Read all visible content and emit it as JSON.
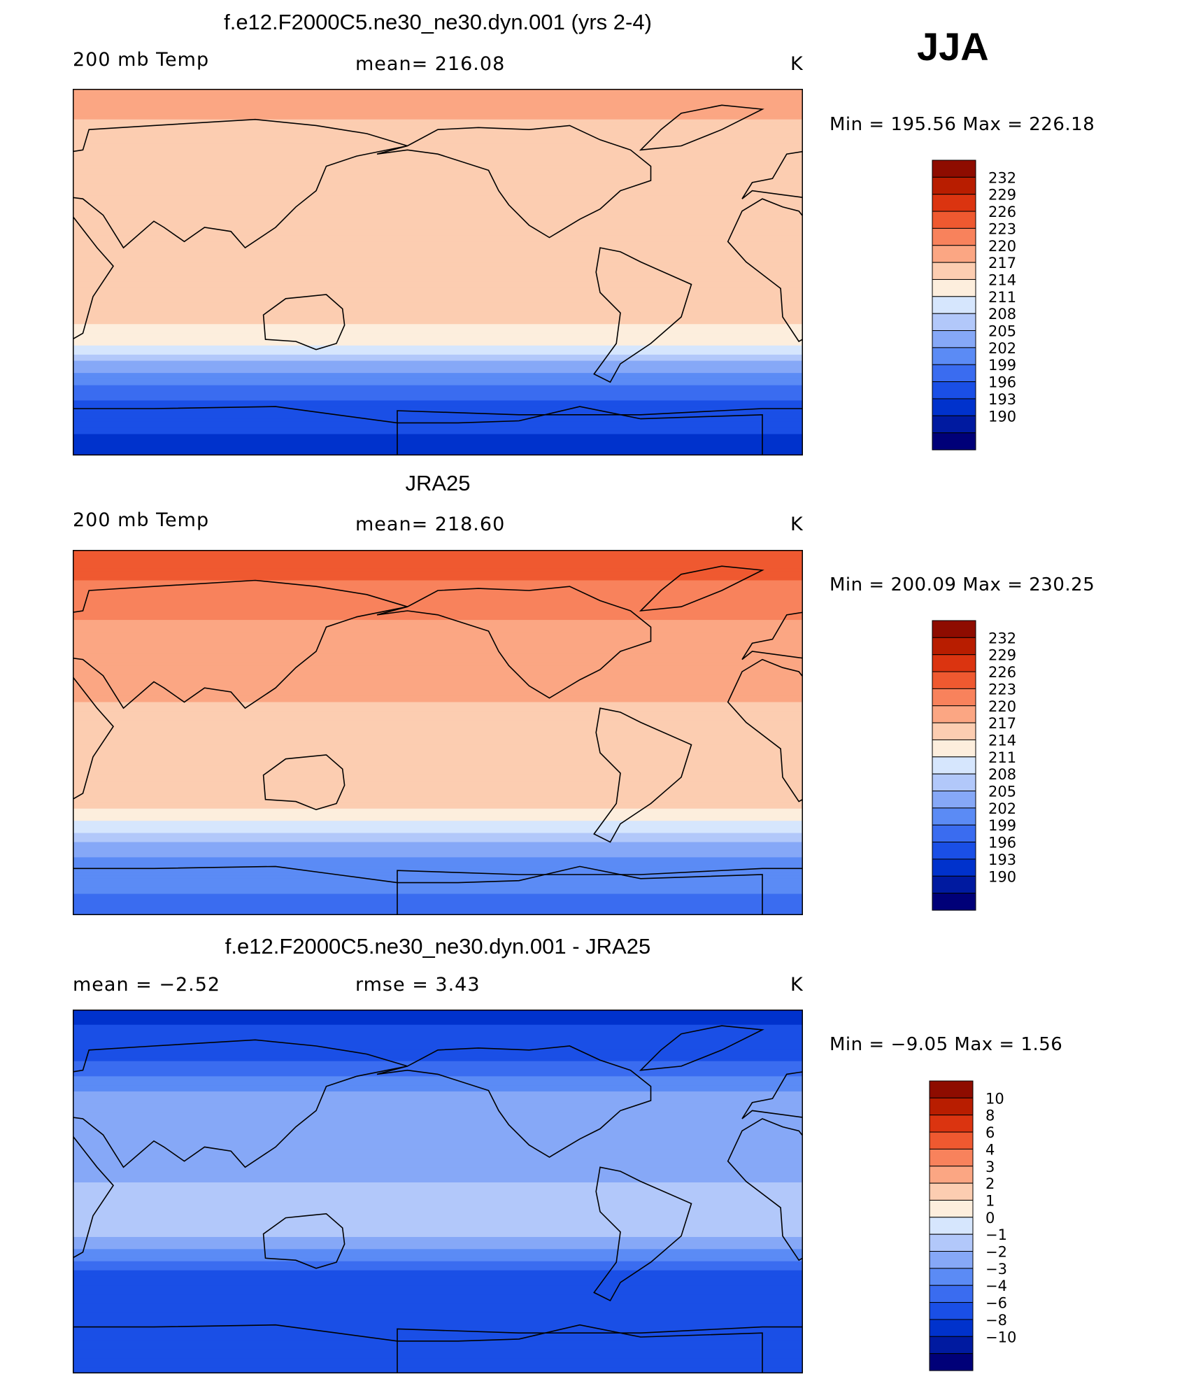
{
  "season": "JJA",
  "colors": {
    "temp_levels": [
      "#000078",
      "#001aa0",
      "#0032cc",
      "#1a4fe6",
      "#3a6cf0",
      "#5b8bf5",
      "#86a8f7",
      "#b2c8fa",
      "#d6e6fd",
      "#fdeedd",
      "#fccdb1",
      "#fba683",
      "#f8825c",
      "#ef5930",
      "#db3410",
      "#b81d00",
      "#8e0c00"
    ],
    "diff_levels": [
      "#000078",
      "#001aa0",
      "#0032cc",
      "#1a4fe6",
      "#3a6cf0",
      "#5b8bf5",
      "#86a8f7",
      "#b2c8fa",
      "#d6e6fd",
      "#fdeedd",
      "#fccdb1",
      "#fba683",
      "#f8825c",
      "#ef5930",
      "#db3410",
      "#b81d00",
      "#8e0c00"
    ]
  },
  "panels": [
    {
      "title": "f.e12.F2000C5.ne30_ne30.dyn.001 (yrs 2-4)",
      "left_label": "200 mb Temp",
      "center_label": "mean=  216.08",
      "units": "K",
      "minmax": "Min  =  195.56  Max  =  226.18",
      "colorbar_ticks": [
        "232",
        "229",
        "226",
        "223",
        "220",
        "217",
        "214",
        "211",
        "208",
        "205",
        "202",
        "199",
        "196",
        "193",
        "190"
      ],
      "field": {
        "type": "temperature",
        "bands": [
          {
            "lat": 90,
            "value": 223
          },
          {
            "lat": 75,
            "value": 220
          },
          {
            "lat": 55,
            "value": 219
          },
          {
            "lat": 35,
            "value": 218
          },
          {
            "lat": 15,
            "value": 218
          },
          {
            "lat": 0,
            "value": 218
          },
          {
            "lat": -20,
            "value": 218
          },
          {
            "lat": -35,
            "value": 215
          },
          {
            "lat": -45,
            "value": 207
          },
          {
            "lat": -55,
            "value": 202
          },
          {
            "lat": -65,
            "value": 198
          },
          {
            "lat": -80,
            "value": 196
          },
          {
            "lat": -90,
            "value": 195
          }
        ]
      }
    },
    {
      "title": "JRA25",
      "left_label": "200 mb Temp",
      "center_label": "mean=  218.60",
      "units": "K",
      "minmax": "Min  =  200.09  Max  =  230.25",
      "colorbar_ticks": [
        "232",
        "229",
        "226",
        "223",
        "220",
        "217",
        "214",
        "211",
        "208",
        "205",
        "202",
        "199",
        "196",
        "193",
        "190"
      ],
      "field": {
        "type": "temperature",
        "bands": [
          {
            "lat": 90,
            "value": 229
          },
          {
            "lat": 80,
            "value": 227
          },
          {
            "lat": 65,
            "value": 224
          },
          {
            "lat": 45,
            "value": 222
          },
          {
            "lat": 25,
            "value": 221
          },
          {
            "lat": 5,
            "value": 219
          },
          {
            "lat": -20,
            "value": 220
          },
          {
            "lat": -35,
            "value": 218
          },
          {
            "lat": -48,
            "value": 212
          },
          {
            "lat": -58,
            "value": 206
          },
          {
            "lat": -70,
            "value": 203
          },
          {
            "lat": -90,
            "value": 201
          }
        ]
      }
    },
    {
      "title": "f.e12.F2000C5.ne30_ne30.dyn.001 - JRA25",
      "left_label": "mean =    −2.52",
      "center_label": "rmse =     3.43",
      "units": "K",
      "minmax": "Min  =    −9.05  Max  =     1.56",
      "colorbar_ticks": [
        "10",
        "8",
        "6",
        "4",
        "3",
        "2",
        "1",
        "0",
        "−1",
        "−2",
        "−3",
        "−4",
        "−6",
        "−8",
        "−10"
      ],
      "field": {
        "type": "difference",
        "bands": [
          {
            "lat": 90,
            "value": -7
          },
          {
            "lat": 75,
            "value": -5
          },
          {
            "lat": 60,
            "value": -3.5
          },
          {
            "lat": 45,
            "value": -1.5
          },
          {
            "lat": 25,
            "value": -1.5
          },
          {
            "lat": 5,
            "value": -1
          },
          {
            "lat": -20,
            "value": -0.7
          },
          {
            "lat": -32,
            "value": -2.5
          },
          {
            "lat": -42,
            "value": -4.5
          },
          {
            "lat": -55,
            "value": -5.5
          },
          {
            "lat": -70,
            "value": -4.5
          },
          {
            "lat": -90,
            "value": -4.5
          }
        ]
      }
    }
  ]
}
